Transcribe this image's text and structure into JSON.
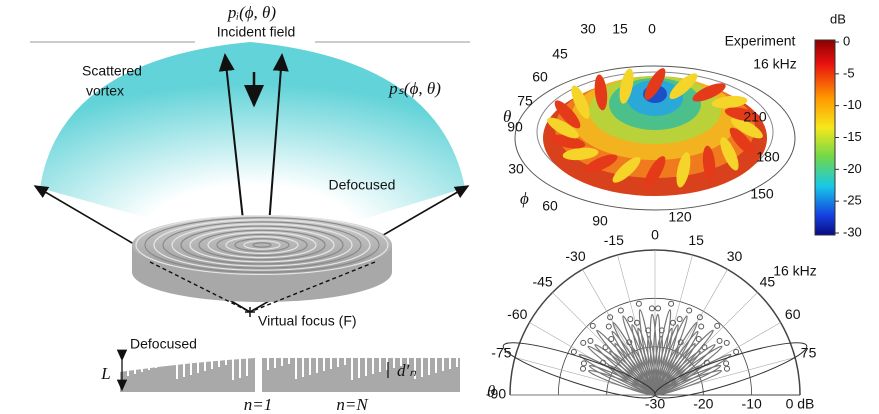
{
  "left": {
    "incident_symbol": "pᵢ(ϕ, θ)",
    "incident": "Incident field",
    "scattered": [
      "Scattered",
      "vortex"
    ],
    "scattered_symbol": "pₛ(ϕ, θ)",
    "defocused_top": "Defocused",
    "virtual_focus": "Virtual focus (F)",
    "defocused_bottom": "Defocused",
    "thickness": "L",
    "depth": "d′ₙ",
    "first_ring": "n=1",
    "last_ring": "n=N"
  },
  "experiment": {
    "title": "Experiment",
    "frequency": "16 kHz",
    "theta": "θ",
    "phi": "ϕ",
    "elevation_labels": [
      "30",
      "15",
      "0",
      "45",
      "60",
      "75",
      "90"
    ],
    "azimuth_labels": [
      "30",
      "60",
      "90",
      "120",
      "150",
      "180",
      "210"
    ],
    "colorbar_unit": "dB",
    "colorbar_ticks": [
      "0",
      "-5",
      "-10",
      "-15",
      "-20",
      "-25",
      "-30"
    ]
  },
  "polar": {
    "frequency": "16 kHz",
    "theta": "θ",
    "angle_labels": [
      "-90",
      "-75",
      "-60",
      "-45",
      "-30",
      "-15",
      "0",
      "15",
      "30",
      "45",
      "60",
      "75"
    ],
    "radial_labels": [
      "-30",
      "-20",
      "-10",
      "0 dB"
    ]
  }
}
